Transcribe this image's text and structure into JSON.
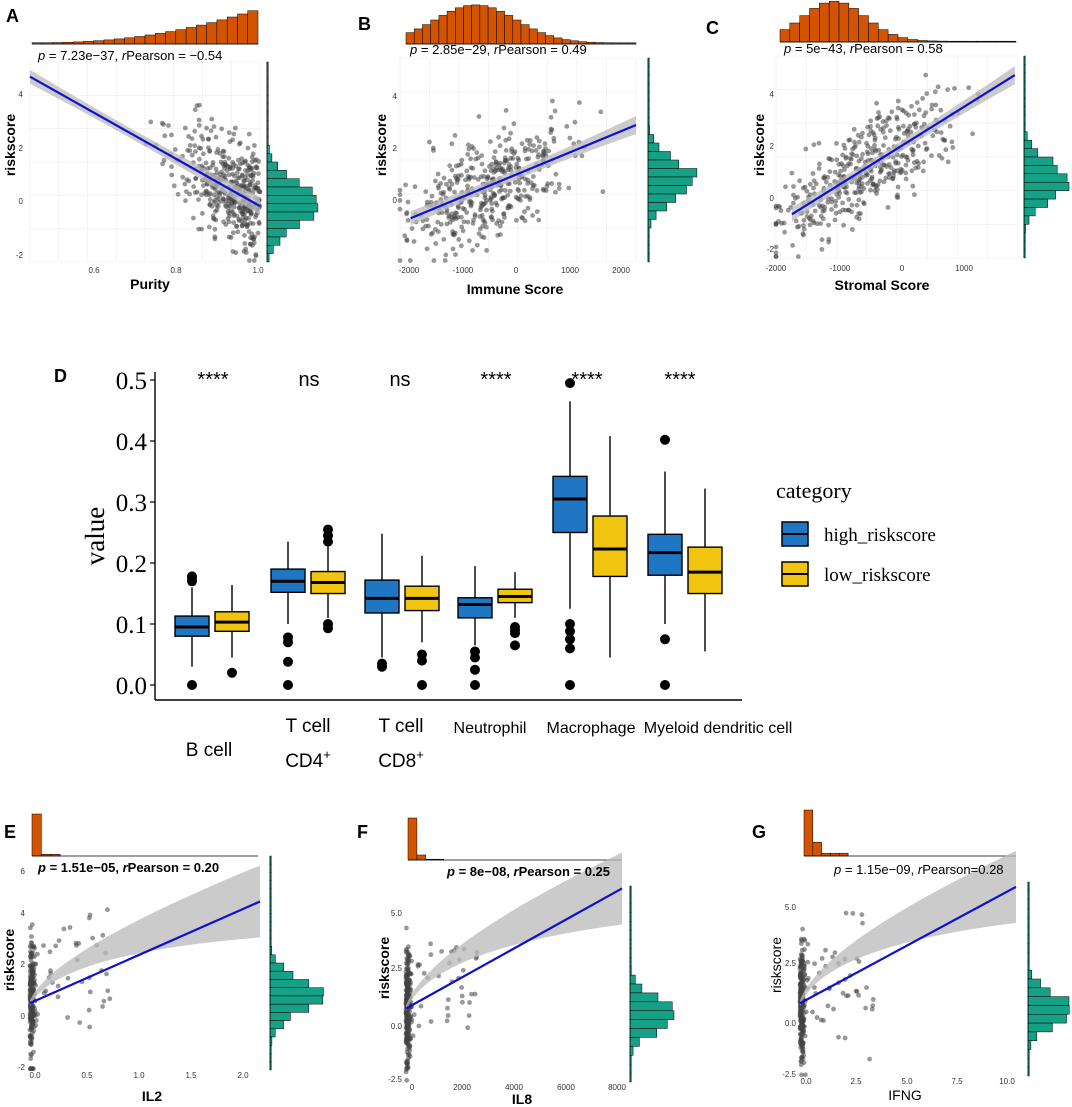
{
  "colors": {
    "hist_top": "#d35400",
    "hist_side": "#16a085",
    "fit": "#1010d0",
    "band": "#b9b9b9",
    "pt": "#444444",
    "high": "#1f77c4",
    "low": "#f1c40f"
  },
  "panels": {
    "A": {
      "label": "A",
      "stat": "= 7.23e−37, ",
      "rp": "Pearson = −0.54",
      "xlabel": "Purity",
      "ylabel": "riskscore",
      "xticks": [
        "0.6",
        "0.8",
        "1.0"
      ],
      "yticks": [
        "-2",
        "0",
        "2",
        "4"
      ]
    },
    "B": {
      "label": "B",
      "stat": "= 2.85e−29, ",
      "rp": "Pearson = 0.49",
      "xlabel": "Immune  Score",
      "ylabel": "riskscore",
      "xticks": [
        "-2000",
        "-1000",
        "0",
        "1000",
        "2000"
      ],
      "yticks": [
        "0",
        "2",
        "4"
      ]
    },
    "C": {
      "label": "C",
      "stat": "= 5e−43, ",
      "rp": "Pearson = 0.58",
      "xlabel": "Stromal Score",
      "ylabel": "riskscore",
      "xticks": [
        "-2000",
        "-1000",
        "0",
        "1000"
      ],
      "yticks": [
        "-2",
        "0",
        "2",
        "4"
      ]
    },
    "E": {
      "label": "E",
      "stat": "= 1.51e−05, ",
      "rp": "Pearson = 0.20",
      "xlabel": "IL2",
      "ylabel": "riskscore",
      "xticks": [
        "0.0",
        "0.5",
        "1.0",
        "1.5",
        "2.0"
      ],
      "yticks": [
        "-2",
        "0",
        "2",
        "4",
        "6"
      ]
    },
    "F": {
      "label": "F",
      "stat": "= 8e−08, ",
      "rp": "Pearson = 0.25",
      "xlabel": "IL8",
      "ylabel": "riskscore",
      "xticks": [
        "0",
        "2000",
        "4000",
        "6000",
        "8000"
      ],
      "yticks": [
        "-2.5",
        "0.0",
        "2.5",
        "5.0"
      ]
    },
    "G": {
      "label": "G",
      "stat": "= 1.15e−09, ",
      "rp": "Pearson=0.28",
      "xlabel": "IFNG",
      "ylabel": "riskscore",
      "xticks": [
        "0.0",
        "2.5",
        "5.0",
        "7.5",
        "10.0"
      ],
      "yticks": [
        "-2.5",
        "0.0",
        "2.5",
        "5.0"
      ]
    }
  },
  "panelD": {
    "label": "D",
    "ylabel": "value",
    "legend_title": "category"
  },
  "chart_data": [
    {
      "panel": "A",
      "type": "scatter",
      "title": "",
      "xlabel": "Purity",
      "ylabel": "riskscore",
      "xlim": [
        0.45,
        1.0
      ],
      "ylim": [
        -2,
        4.8
      ],
      "fit": {
        "x": [
          0.45,
          1.0
        ],
        "y": [
          4.3,
          -0.1
        ]
      },
      "p": "7.23e-37",
      "r": -0.54
    },
    {
      "panel": "B",
      "type": "scatter",
      "title": "",
      "xlabel": "Immune Score",
      "ylabel": "riskscore",
      "xlim": [
        -2200,
        2250
      ],
      "ylim": [
        -2,
        5
      ],
      "fit": {
        "x": [
          -2000,
          2250
        ],
        "y": [
          -0.5,
          2.7
        ]
      },
      "p": "2.85e-29",
      "r": 0.49
    },
    {
      "panel": "C",
      "type": "scatter",
      "title": "",
      "xlabel": "Stromal Score",
      "ylabel": "riskscore",
      "xlim": [
        -2050,
        1750
      ],
      "ylim": [
        -2.2,
        5.2
      ],
      "fit": {
        "x": [
          -1800,
          1700
        ],
        "y": [
          -0.6,
          4.5
        ]
      },
      "p": "5e-43",
      "r": 0.58
    },
    {
      "panel": "D",
      "type": "box",
      "title": "",
      "xlabel": "",
      "ylabel": "value",
      "ylim": [
        0,
        0.5
      ],
      "yticks": [
        "0.0",
        "0.1",
        "0.2",
        "0.3",
        "0.4",
        "0.5"
      ],
      "categories": [
        "B cell",
        "T cell CD4+",
        "T cell CD8+",
        "Neutrophil",
        "Macrophage",
        "Myeloid dendritic cell"
      ],
      "significance": [
        "****",
        "ns",
        "ns",
        "****",
        "****",
        "****"
      ],
      "series": [
        {
          "name": "high_riskscore",
          "boxes": [
            {
              "q1": 0.08,
              "med": 0.095,
              "q3": 0.113,
              "lo": 0.03,
              "hi": 0.16,
              "outliers": [
                0.0,
                0.17,
                0.175,
                0.178
              ]
            },
            {
              "q1": 0.152,
              "med": 0.17,
              "q3": 0.19,
              "lo": 0.1,
              "hi": 0.235,
              "outliers": [
                0.0,
                0.038,
                0.07,
                0.078
              ]
            },
            {
              "q1": 0.118,
              "med": 0.142,
              "q3": 0.172,
              "lo": 0.045,
              "hi": 0.248,
              "outliers": [
                0.03,
                0.035
              ]
            },
            {
              "q1": 0.11,
              "med": 0.132,
              "q3": 0.143,
              "lo": 0.065,
              "hi": 0.195,
              "outliers": [
                0.0,
                0.025,
                0.045,
                0.055
              ]
            },
            {
              "q1": 0.25,
              "med": 0.305,
              "q3": 0.342,
              "lo": 0.125,
              "hi": 0.465,
              "outliers": [
                0.0,
                0.06,
                0.075,
                0.088,
                0.1,
                0.495
              ]
            },
            {
              "q1": 0.18,
              "med": 0.217,
              "q3": 0.247,
              "lo": 0.1,
              "hi": 0.35,
              "outliers": [
                0.0,
                0.075,
                0.402
              ]
            }
          ]
        },
        {
          "name": "low_riskscore",
          "boxes": [
            {
              "q1": 0.088,
              "med": 0.103,
              "q3": 0.12,
              "lo": 0.045,
              "hi": 0.164,
              "outliers": [
                0.02
              ]
            },
            {
              "q1": 0.15,
              "med": 0.168,
              "q3": 0.186,
              "lo": 0.11,
              "hi": 0.228,
              "outliers": [
                0.093,
                0.1,
                0.235,
                0.245,
                0.255
              ]
            },
            {
              "q1": 0.122,
              "med": 0.142,
              "q3": 0.162,
              "lo": 0.07,
              "hi": 0.212,
              "outliers": [
                0.0,
                0.04,
                0.05
              ]
            },
            {
              "q1": 0.135,
              "med": 0.145,
              "q3": 0.157,
              "lo": 0.11,
              "hi": 0.185,
              "outliers": [
                0.065,
                0.085,
                0.09,
                0.095
              ]
            },
            {
              "q1": 0.178,
              "med": 0.223,
              "q3": 0.277,
              "lo": 0.045,
              "hi": 0.408,
              "outliers": []
            },
            {
              "q1": 0.15,
              "med": 0.185,
              "q3": 0.226,
              "lo": 0.055,
              "hi": 0.322,
              "outliers": []
            }
          ]
        }
      ]
    },
    {
      "panel": "E",
      "type": "scatter",
      "title": "",
      "xlabel": "IL2",
      "ylabel": "riskscore",
      "xlim": [
        0,
        2.15
      ],
      "ylim": [
        -2,
        6
      ],
      "fit": {
        "x": [
          0,
          2.15
        ],
        "y": [
          0.5,
          4.3
        ]
      },
      "p": "1.51e-05",
      "r": 0.2
    },
    {
      "panel": "F",
      "type": "scatter",
      "title": "",
      "xlabel": "IL8",
      "ylabel": "riskscore",
      "xlim": [
        0,
        8400
      ],
      "ylim": [
        -2.5,
        5.5
      ],
      "fit": {
        "x": [
          0,
          8400
        ],
        "y": [
          0.5,
          5.4
        ]
      },
      "p": "8e-08",
      "r": 0.25
    },
    {
      "panel": "G",
      "type": "scatter",
      "title": "",
      "xlabel": "IFNG",
      "ylabel": "riskscore",
      "xlim": [
        0,
        10.5
      ],
      "ylim": [
        -2.5,
        5.5
      ],
      "fit": {
        "x": [
          0,
          10.5
        ],
        "y": [
          0.5,
          5.3
        ]
      },
      "p": "1.15e-09",
      "r": 0.28
    }
  ]
}
